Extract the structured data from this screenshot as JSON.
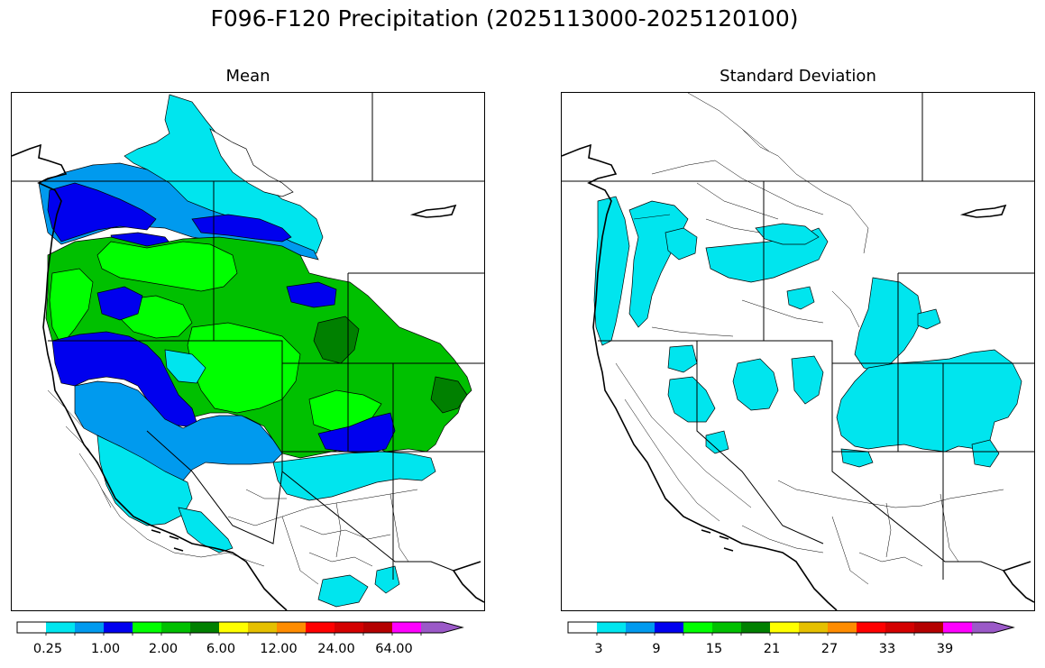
{
  "figure": {
    "title": "F096-F120 Precipitation (2025113000-2025120100)"
  },
  "panels": [
    {
      "title": "Mean",
      "colorbar": {
        "colors": [
          "#ffffff",
          "#00e5ee",
          "#009aee",
          "#0000ee",
          "#00ff00",
          "#00c000",
          "#008000",
          "#ffff00",
          "#e5c000",
          "#ff8c00",
          "#ff0000",
          "#d40000",
          "#b40000",
          "#ff00ff",
          "#9b59c8"
        ],
        "tick_labels": [
          "0.25",
          "1.00",
          "2.00",
          "6.00",
          "12.00",
          "24.00",
          "64.00"
        ],
        "extend": "max"
      }
    },
    {
      "title": "Standard Deviation",
      "colorbar": {
        "colors": [
          "#ffffff",
          "#00e5ee",
          "#009aee",
          "#0000ee",
          "#00ff00",
          "#00c000",
          "#008000",
          "#ffff00",
          "#e5c000",
          "#ff8c00",
          "#ff0000",
          "#d40000",
          "#b40000",
          "#ff00ff",
          "#9b59c8"
        ],
        "tick_labels": [
          "3",
          "9",
          "15",
          "21",
          "27",
          "33",
          "39"
        ],
        "extend": "max"
      }
    }
  ]
}
